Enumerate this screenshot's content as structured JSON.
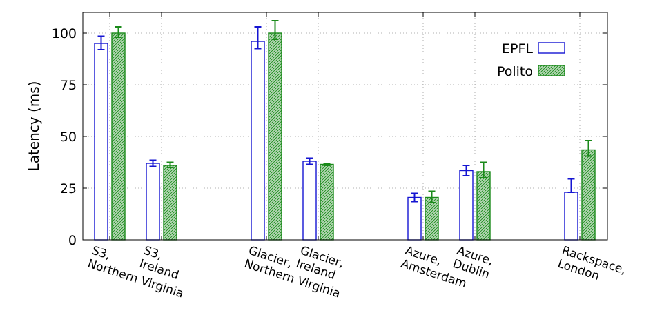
{
  "chart_data": {
    "type": "bar",
    "title": "",
    "xlabel": "",
    "ylabel": "Latency (ms)",
    "ylim": [
      0,
      110
    ],
    "yticks": [
      0,
      25,
      50,
      75,
      100
    ],
    "grid": true,
    "legend_position": "top-right",
    "categories": [
      [
        "S3,",
        "Northern Virginia"
      ],
      [
        "S3,",
        "Ireland"
      ],
      [
        "Glacier,",
        "Northern Virginia"
      ],
      [
        "Glacier,",
        "Ireland"
      ],
      [
        "Azure,",
        "Amsterdam"
      ],
      [
        "Azure,",
        "Dublin"
      ],
      [
        "Rackspace,",
        "London"
      ]
    ],
    "series": [
      {
        "name": "EPFL",
        "color": "#1515d2",
        "fill": "none",
        "values": [
          95,
          37,
          96,
          38,
          20.5,
          33.5,
          23
        ],
        "err_low": [
          3,
          1.5,
          3.5,
          1.5,
          2,
          2.5,
          0
        ],
        "err_high": [
          3.5,
          1.5,
          7,
          1.5,
          2,
          2.5,
          6.5
        ]
      },
      {
        "name": "Polito",
        "color": "#1a8a1a",
        "fill": "hatch",
        "values": [
          100,
          36,
          100,
          36.5,
          20.5,
          33,
          43.5
        ],
        "err_low": [
          2,
          1,
          3,
          0.5,
          2.5,
          3,
          3
        ],
        "err_high": [
          3,
          1.5,
          6,
          0.5,
          3,
          4.5,
          4.5
        ]
      }
    ]
  }
}
